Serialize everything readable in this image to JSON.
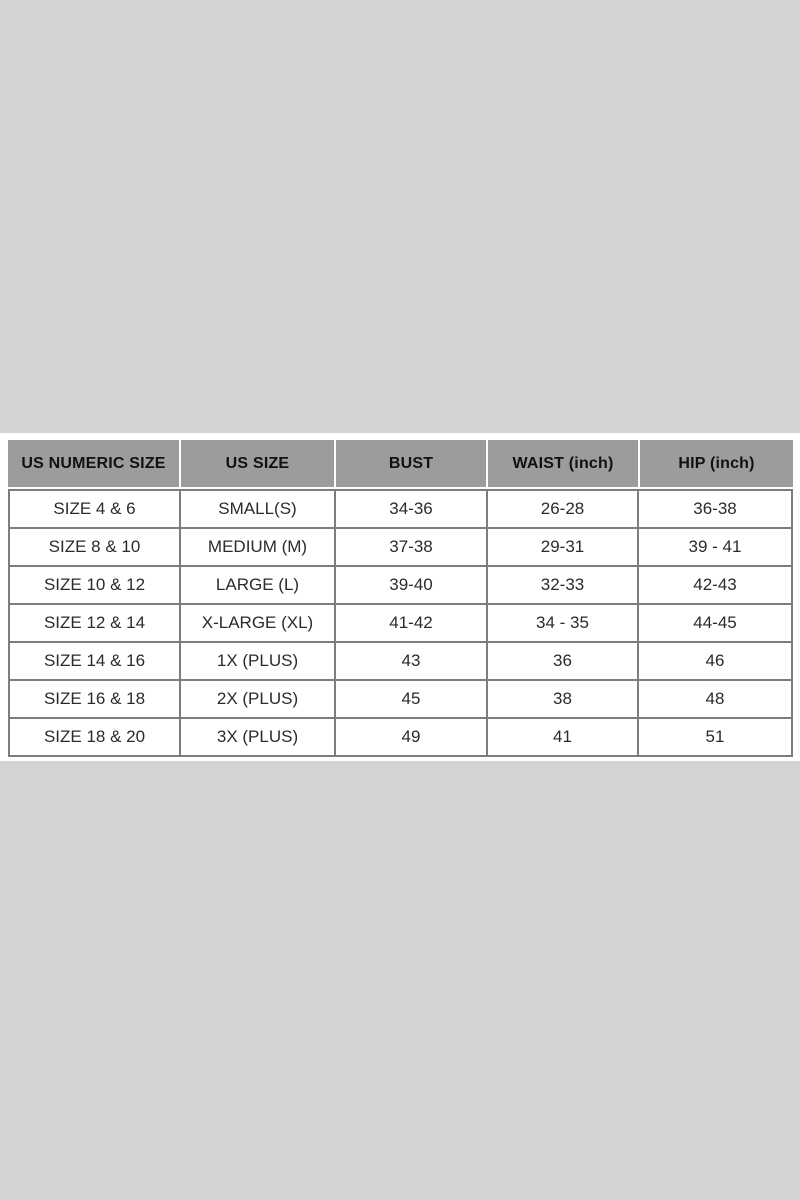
{
  "colors": {
    "page_background": "#d3d3d3",
    "band_background": "#ffffff",
    "header_background": "#9c9c9c",
    "header_text": "#111111",
    "cell_text": "#2b2b2b",
    "table_border": "#7d7d7d"
  },
  "chart_data": {
    "type": "table",
    "columns": [
      "US NUMERIC SIZE",
      "US SIZE",
      "BUST",
      "WAIST (inch)",
      "HIP (inch)"
    ],
    "rows": [
      [
        "SIZE 4 & 6",
        "SMALL(S)",
        "34-36",
        "26-28",
        "36-38"
      ],
      [
        "SIZE 8 & 10",
        "MEDIUM (M)",
        "37-38",
        "29-31",
        "39 - 41"
      ],
      [
        "SIZE 10 & 12",
        "LARGE (L)",
        "39-40",
        "32-33",
        "42-43"
      ],
      [
        "SIZE 12 & 14",
        "X-LARGE (XL)",
        "41-42",
        "34 - 35",
        "44-45"
      ],
      [
        "SIZE 14 & 16",
        "1X (PLUS)",
        "43",
        "36",
        "46"
      ],
      [
        "SIZE 16 & 18",
        "2X (PLUS)",
        "45",
        "38",
        "48"
      ],
      [
        "SIZE 18 & 20",
        "3X (PLUS)",
        "49",
        "41",
        "51"
      ]
    ]
  }
}
